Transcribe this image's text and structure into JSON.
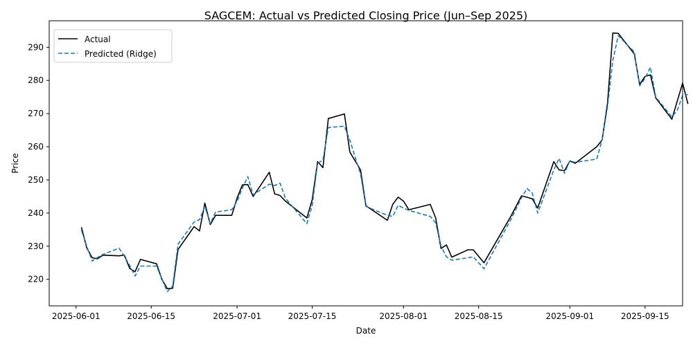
{
  "chart_data": {
    "type": "line",
    "title": "SAGCEM: Actual vs Predicted Closing Price (Jun–Sep 2025)",
    "xlabel": "Date",
    "ylabel": "Price",
    "xlim": [
      "2025-05-27",
      "2025-09-22"
    ],
    "ylim": [
      212,
      298
    ],
    "x_ticks": [
      "2025-06-01",
      "2025-06-15",
      "2025-07-01",
      "2025-07-15",
      "2025-08-01",
      "2025-08-15",
      "2025-09-01",
      "2025-09-15"
    ],
    "y_ticks": [
      220,
      230,
      240,
      250,
      260,
      270,
      280,
      290
    ],
    "legend": "top-left",
    "grid": false,
    "series": [
      {
        "name": "Actual",
        "color": "#000000",
        "style": "solid",
        "points": [
          [
            "2025-06-02",
            235.7
          ],
          [
            "2025-06-03",
            229.5
          ],
          [
            "2025-06-04",
            226.5
          ],
          [
            "2025-06-05",
            226.2
          ],
          [
            "2025-06-06",
            227.3
          ],
          [
            "2025-06-09",
            227.1
          ],
          [
            "2025-06-10",
            227.3
          ],
          [
            "2025-06-11",
            223.3
          ],
          [
            "2025-06-12",
            222.3
          ],
          [
            "2025-06-13",
            226.0
          ],
          [
            "2025-06-16",
            224.7
          ],
          [
            "2025-06-17",
            220.0
          ],
          [
            "2025-06-18",
            217.2
          ],
          [
            "2025-06-19",
            217.3
          ],
          [
            "2025-06-20",
            229.0
          ],
          [
            "2025-06-23",
            235.9
          ],
          [
            "2025-06-24",
            234.6
          ],
          [
            "2025-06-25",
            243.0
          ],
          [
            "2025-06-26",
            236.5
          ],
          [
            "2025-06-27",
            239.3
          ],
          [
            "2025-06-30",
            239.3
          ],
          [
            "2025-07-01",
            244.5
          ],
          [
            "2025-07-02",
            248.5
          ],
          [
            "2025-07-03",
            248.6
          ],
          [
            "2025-07-04",
            245.0
          ],
          [
            "2025-07-07",
            252.3
          ],
          [
            "2025-07-08",
            245.8
          ],
          [
            "2025-07-09",
            245.3
          ],
          [
            "2025-07-10",
            243.6
          ],
          [
            "2025-07-14",
            238.5
          ],
          [
            "2025-07-15",
            244.0
          ],
          [
            "2025-07-16",
            255.5
          ],
          [
            "2025-07-17",
            253.7
          ],
          [
            "2025-07-18",
            268.5
          ],
          [
            "2025-07-21",
            269.9
          ],
          [
            "2025-07-22",
            258.4
          ],
          [
            "2025-07-24",
            253.0
          ],
          [
            "2025-07-25",
            242.2
          ],
          [
            "2025-07-29",
            237.8
          ],
          [
            "2025-07-30",
            242.6
          ],
          [
            "2025-07-31",
            244.8
          ],
          [
            "2025-08-01",
            243.6
          ],
          [
            "2025-08-02",
            241.0
          ],
          [
            "2025-08-06",
            242.6
          ],
          [
            "2025-08-07",
            238.5
          ],
          [
            "2025-08-08",
            229.3
          ],
          [
            "2025-08-09",
            230.4
          ],
          [
            "2025-08-10",
            226.7
          ],
          [
            "2025-08-13",
            228.9
          ],
          [
            "2025-08-14",
            228.9
          ],
          [
            "2025-08-16",
            225.0
          ],
          [
            "2025-08-21",
            239.0
          ],
          [
            "2025-08-23",
            245.2
          ],
          [
            "2025-08-25",
            244.3
          ],
          [
            "2025-08-26",
            241.5
          ],
          [
            "2025-08-29",
            255.5
          ],
          [
            "2025-08-30",
            253.0
          ],
          [
            "2025-08-31",
            252.8
          ],
          [
            "2025-09-01",
            255.7
          ],
          [
            "2025-09-02",
            255.0
          ],
          [
            "2025-09-06",
            260.0
          ],
          [
            "2025-09-07",
            262.0
          ],
          [
            "2025-09-08",
            273.0
          ],
          [
            "2025-09-09",
            294.3
          ],
          [
            "2025-09-10",
            294.2
          ],
          [
            "2025-09-13",
            288.0
          ],
          [
            "2025-09-14",
            278.8
          ],
          [
            "2025-09-15",
            281.2
          ],
          [
            "2025-09-16",
            281.7
          ],
          [
            "2025-09-17",
            274.7
          ],
          [
            "2025-09-20",
            268.3
          ],
          [
            "2025-09-22",
            279.2
          ],
          [
            "2025-09-23",
            272.9
          ]
        ]
      },
      {
        "name": "Predicted (Ridge)",
        "color": "#1f77b4",
        "style": "dashed",
        "points": [
          [
            "2025-06-02",
            234.8
          ],
          [
            "2025-06-03",
            230.0
          ],
          [
            "2025-06-04",
            225.5
          ],
          [
            "2025-06-05",
            226.6
          ],
          [
            "2025-06-06",
            227.5
          ],
          [
            "2025-06-09",
            229.4
          ],
          [
            "2025-06-10",
            227.0
          ],
          [
            "2025-06-11",
            224.2
          ],
          [
            "2025-06-12",
            221.0
          ],
          [
            "2025-06-13",
            224.0
          ],
          [
            "2025-06-16",
            224.0
          ],
          [
            "2025-06-17",
            220.0
          ],
          [
            "2025-06-18",
            216.3
          ],
          [
            "2025-06-19",
            218.0
          ],
          [
            "2025-06-20",
            230.6
          ],
          [
            "2025-06-23",
            237.3
          ],
          [
            "2025-06-24",
            238.0
          ],
          [
            "2025-06-25",
            242.0
          ],
          [
            "2025-06-26",
            236.8
          ],
          [
            "2025-06-27",
            240.3
          ],
          [
            "2025-06-30",
            241.0
          ],
          [
            "2025-07-01",
            243.5
          ],
          [
            "2025-07-02",
            247.5
          ],
          [
            "2025-07-03",
            251.0
          ],
          [
            "2025-07-04",
            245.5
          ],
          [
            "2025-07-07",
            248.7
          ],
          [
            "2025-07-08",
            248.3
          ],
          [
            "2025-07-09",
            249.0
          ],
          [
            "2025-07-10",
            244.5
          ],
          [
            "2025-07-14",
            236.8
          ],
          [
            "2025-07-15",
            242.3
          ],
          [
            "2025-07-16",
            255.0
          ],
          [
            "2025-07-17",
            256.0
          ],
          [
            "2025-07-18",
            265.8
          ],
          [
            "2025-07-21",
            266.2
          ],
          [
            "2025-07-22",
            262.0
          ],
          [
            "2025-07-24",
            251.7
          ],
          [
            "2025-07-25",
            242.0
          ],
          [
            "2025-07-29",
            239.3
          ],
          [
            "2025-07-30",
            239.0
          ],
          [
            "2025-07-31",
            242.3
          ],
          [
            "2025-08-01",
            241.5
          ],
          [
            "2025-08-02",
            240.8
          ],
          [
            "2025-08-06",
            239.0
          ],
          [
            "2025-08-07",
            237.0
          ],
          [
            "2025-08-08",
            230.0
          ],
          [
            "2025-08-09",
            226.8
          ],
          [
            "2025-08-10",
            225.8
          ],
          [
            "2025-08-13",
            226.5
          ],
          [
            "2025-08-14",
            226.8
          ],
          [
            "2025-08-16",
            223.2
          ],
          [
            "2025-08-21",
            238.0
          ],
          [
            "2025-08-23",
            244.6
          ],
          [
            "2025-08-24",
            247.4
          ],
          [
            "2025-08-25",
            246.0
          ],
          [
            "2025-08-26",
            240.0
          ],
          [
            "2025-08-29",
            253.0
          ],
          [
            "2025-08-30",
            256.5
          ],
          [
            "2025-08-31",
            252.0
          ],
          [
            "2025-09-01",
            255.7
          ],
          [
            "2025-09-02",
            255.3
          ],
          [
            "2025-09-06",
            256.3
          ],
          [
            "2025-09-07",
            262.0
          ],
          [
            "2025-09-08",
            272.0
          ],
          [
            "2025-09-09",
            286.0
          ],
          [
            "2025-09-10",
            293.5
          ],
          [
            "2025-09-13",
            288.6
          ],
          [
            "2025-09-14",
            278.4
          ],
          [
            "2025-09-15",
            280.6
          ],
          [
            "2025-09-16",
            284.0
          ],
          [
            "2025-09-17",
            275.0
          ],
          [
            "2025-09-20",
            269.0
          ],
          [
            "2025-09-21",
            271.0
          ],
          [
            "2025-09-22",
            275.5
          ],
          [
            "2025-09-23",
            275.8
          ]
        ]
      }
    ]
  }
}
